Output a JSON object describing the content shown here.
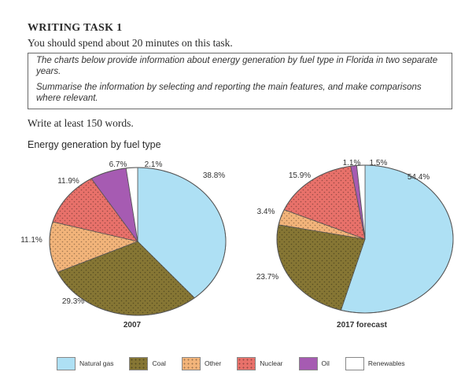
{
  "task": {
    "title": "WRITING TASK 1",
    "instruction": "You should spend about 20 minutes on this task.",
    "prompt_line1": "The charts below provide information about energy generation by fuel type in Florida in two separate years.",
    "prompt_line2": "Summarise the information by selecting and reporting the main features, and make comparisons where relevant.",
    "word_count": "Write at least 150 words."
  },
  "chart_title": "Energy generation by fuel type",
  "chart_data": {
    "type": "pie",
    "title": "Energy generation by fuel type",
    "categories": [
      "Natural gas",
      "Coal",
      "Other",
      "Nuclear",
      "Oil",
      "Renewables"
    ],
    "colors": {
      "Natural gas": "#aee0f4",
      "Coal": "#867634",
      "Other": "#f2b47a",
      "Nuclear": "#e8716a",
      "Oil": "#a65bb2",
      "Renewables": "#ffffff"
    },
    "patterns": {
      "Natural gas": "none",
      "Coal": "dots",
      "Other": "dots",
      "Nuclear": "dots",
      "Oil": "none",
      "Renewables": "none"
    },
    "legend_position": "bottom",
    "series": [
      {
        "name": "2007",
        "values": [
          38.8,
          29.3,
          11.1,
          11.9,
          6.7,
          2.1
        ],
        "labels": [
          "38.8%",
          "29.3%",
          "11.1%",
          "11.9%",
          "6.7%",
          "2.1%"
        ]
      },
      {
        "name": "2017 forecast",
        "values": [
          54.4,
          23.7,
          3.4,
          15.9,
          1.1,
          1.5
        ],
        "labels": [
          "54.4%",
          "23.7%",
          "3.4%",
          "15.9%",
          "1.1%",
          "1.5%"
        ]
      }
    ]
  }
}
